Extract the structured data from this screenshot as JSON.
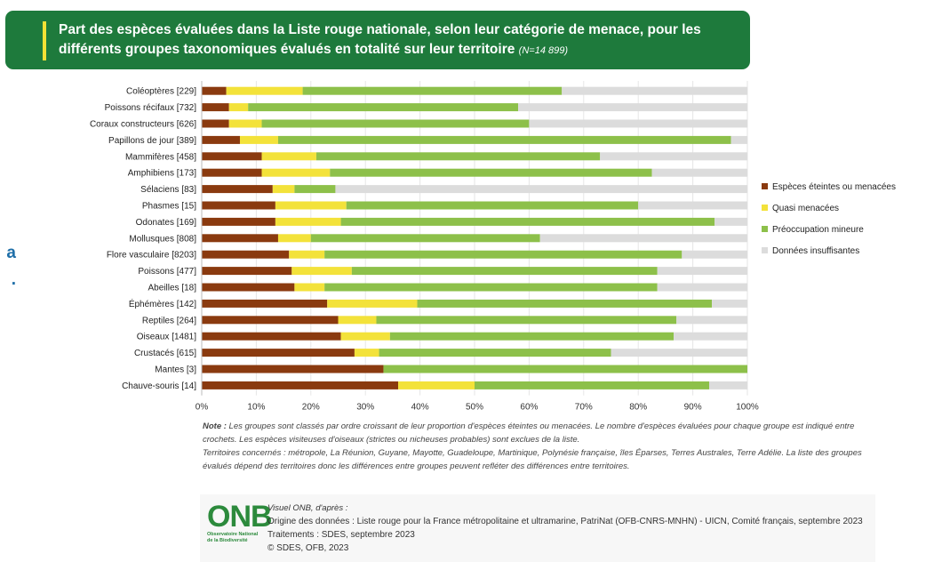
{
  "page": {
    "left_fragments": [
      "a",
      "."
    ]
  },
  "header": {
    "title": "Part des espèces évaluées dans la Liste rouge nationale, selon leur catégorie de menace, pour les différents groupes taxonomiques évalués en totalité sur leur territoire",
    "n_label": "(N=14 899)"
  },
  "chart_data": {
    "type": "bar",
    "orientation": "horizontal",
    "stacked": true,
    "categories": [
      "Coléoptères [229]",
      "Poissons récifaux [732]",
      "Coraux constructeurs [626]",
      "Papillons de jour [389]",
      "Mammifères [458]",
      "Amphibiens [173]",
      "Sélaciens [83]",
      "Phasmes [15]",
      "Odonates [169]",
      "Mollusques [808]",
      "Flore vasculaire [8203]",
      "Poissons [477]",
      "Abeilles [18]",
      "Éphémères [142]",
      "Reptiles [264]",
      "Oiseaux [1481]",
      "Crustacés [615]",
      "Mantes [3]",
      "Chauve-souris [14]"
    ],
    "series": [
      {
        "name": "Espèces éteintes ou menacées",
        "color": "#8a3a0f",
        "values": [
          4.5,
          5,
          5,
          7,
          11,
          11,
          13,
          13.5,
          13.5,
          14,
          16,
          16.5,
          17,
          23,
          25,
          25.5,
          28,
          33.3,
          36
        ]
      },
      {
        "name": "Quasi menacées",
        "color": "#f3e23a",
        "values": [
          14,
          3.5,
          6,
          7,
          10,
          12.5,
          4,
          13,
          12,
          6,
          6.5,
          11,
          5.5,
          16.5,
          7,
          9,
          4.5,
          0,
          14
        ]
      },
      {
        "name": "Préoccupation mineure",
        "color": "#8dc04a",
        "values": [
          47.5,
          49.5,
          49,
          83,
          52,
          59,
          7.5,
          53.5,
          68.5,
          42,
          65.5,
          56,
          61,
          54,
          55,
          52,
          42.5,
          66.7,
          43
        ]
      },
      {
        "name": "Données insuffisantes",
        "color": "#dcdcdc",
        "values": [
          34,
          42,
          40,
          3,
          27,
          17.5,
          75.5,
          20,
          6,
          38,
          12,
          16.5,
          16.5,
          6.5,
          13,
          13.5,
          25,
          0,
          7
        ]
      }
    ],
    "x_ticks": [
      "0%",
      "10%",
      "20%",
      "30%",
      "40%",
      "50%",
      "60%",
      "70%",
      "80%",
      "90%",
      "100%"
    ],
    "xlim": [
      0,
      100
    ],
    "unit": "%",
    "legend_placement": "right",
    "grid": true
  },
  "notes": {
    "note_label": "Note :",
    "note_text": " Les groupes sont classés par ordre croissant de leur proportion d'espèces éteintes ou menacées. Le nombre d'espèces évaluées pour chaque groupe est indiqué entre crochets. Les espèces visiteuses d'oiseaux (strictes ou nicheuses probables) sont exclues de la liste.",
    "territories": "Territoires concernés : métropole, La Réunion, Guyane, Mayotte, Guadeloupe, Martinique, Polynésie française, îles Éparses, Terres Australes, Terre Adélie. La liste des groupes évalués dépend des territoires donc les différences entre groupes peuvent refléter des différences entre territoires."
  },
  "footer": {
    "logo_letters": "ONB",
    "logo_sub": "Observatoire National de la Biodiversité",
    "visual_line": "Visuel ONB, d'après :",
    "origin_line": "Origine des données : Liste rouge pour la France métropolitaine et ultramarine, PatriNat (OFB-CNRS-MNHN) - UICN, Comité français, septembre 2023",
    "treatment_line": "Traitements : SDES, septembre 2023",
    "copyright_line": "© SDES, OFB, 2023"
  }
}
